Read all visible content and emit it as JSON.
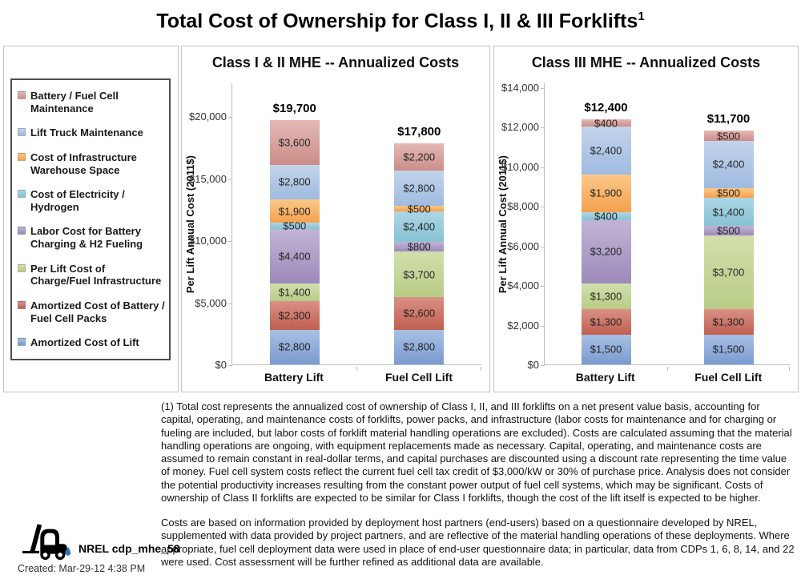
{
  "page_title": "Total Cost of Ownership for Class I, II & III Forklifts",
  "title_superscript": "1",
  "colors": {
    "battery_fc_maintenance": [
      "#E4B9B5",
      "#CB8D89"
    ],
    "lift_truck_maintenance": [
      "#C3D4EC",
      "#9FBBDF"
    ],
    "infrastructure_warehouse": [
      "#FBC888",
      "#F4A14E"
    ],
    "electricity_hydrogen": [
      "#ACD6E4",
      "#88C2D5"
    ],
    "labor_charging": [
      "#C2B4D6",
      "#9C8ABB"
    ],
    "charge_fuel_infrastructure": [
      "#D2DFAC",
      "#B8CC86"
    ],
    "amortized_battery_fc": [
      "#DA9086",
      "#BF5F50"
    ],
    "amortized_lift": [
      "#A8C0E4",
      "#7A9BD0"
    ]
  },
  "legend": {
    "items": [
      {
        "label": "Battery / Fuel Cell Maintenance",
        "color": "battery_fc_maintenance"
      },
      {
        "label": "Lift Truck Maintenance",
        "color": "lift_truck_maintenance"
      },
      {
        "label": "Cost of Infrastructure Warehouse Space",
        "color": "infrastructure_warehouse"
      },
      {
        "label": "Cost of Electricity / Hydrogen",
        "color": "electricity_hydrogen"
      },
      {
        "label": "Labor Cost for Battery Charging & H2 Fueling",
        "color": "labor_charging"
      },
      {
        "label": "Per Lift Cost of Charge/Fuel Infrastructure",
        "color": "charge_fuel_infrastructure"
      },
      {
        "label": "Amortized Cost of Battery / Fuel Cell Packs",
        "color": "amortized_battery_fc"
      },
      {
        "label": "Amortized Cost of Lift",
        "color": "amortized_lift"
      }
    ]
  },
  "chart_data": [
    {
      "type": "bar",
      "stacked": true,
      "title": "Class I & II MHE -- Annualized Costs",
      "ylabel": "Per Lift Annual Cost (2011$)",
      "ylim": [
        0,
        20000
      ],
      "yticks": [
        "$0",
        "$5,000",
        "$10,000",
        "$15,000",
        "$20,000"
      ],
      "categories": [
        "Battery Lift",
        "Fuel Cell Lift"
      ],
      "totals": [
        19700,
        17800
      ],
      "series": [
        {
          "name": "Amortized Cost of Lift",
          "color": "amortized_lift",
          "values": [
            2800,
            2800
          ]
        },
        {
          "name": "Amortized Cost of Battery / Fuel Cell Packs",
          "color": "amortized_battery_fc",
          "values": [
            2300,
            2600
          ]
        },
        {
          "name": "Per Lift Cost of Charge/Fuel Infrastructure",
          "color": "charge_fuel_infrastructure",
          "values": [
            1400,
            3700
          ]
        },
        {
          "name": "Labor Cost for Battery Charging & H2 Fueling",
          "color": "labor_charging",
          "values": [
            4400,
            800
          ]
        },
        {
          "name": "Cost of Electricity / Hydrogen",
          "color": "electricity_hydrogen",
          "values": [
            500,
            2400
          ]
        },
        {
          "name": "Cost of Infrastructure Warehouse Space",
          "color": "infrastructure_warehouse",
          "values": [
            1900,
            500
          ]
        },
        {
          "name": "Lift Truck Maintenance",
          "color": "lift_truck_maintenance",
          "values": [
            2800,
            2800
          ]
        },
        {
          "name": "Battery / Fuel Cell Maintenance",
          "color": "battery_fc_maintenance",
          "values": [
            3600,
            2200
          ]
        }
      ]
    },
    {
      "type": "bar",
      "stacked": true,
      "title": "Class III MHE -- Annualized Costs",
      "ylabel": "Per Lift Annual Cost (2011$)",
      "ylim": [
        0,
        14000
      ],
      "yticks": [
        "$0",
        "$2,000",
        "$4,000",
        "$6,000",
        "$8,000",
        "$10,000",
        "$12,000",
        "$14,000"
      ],
      "categories": [
        "Battery Lift",
        "Fuel Cell Lift"
      ],
      "totals": [
        12400,
        11700
      ],
      "series": [
        {
          "name": "Amortized Cost of Lift",
          "color": "amortized_lift",
          "values": [
            1500,
            1500
          ]
        },
        {
          "name": "Amortized Cost of Battery / Fuel Cell Packs",
          "color": "amortized_battery_fc",
          "values": [
            1300,
            1300
          ]
        },
        {
          "name": "Per Lift Cost of Charge/Fuel Infrastructure",
          "color": "charge_fuel_infrastructure",
          "values": [
            1300,
            3700
          ]
        },
        {
          "name": "Labor Cost for Battery Charging & H2 Fueling",
          "color": "labor_charging",
          "values": [
            3200,
            500
          ]
        },
        {
          "name": "Cost of Electricity / Hydrogen",
          "color": "electricity_hydrogen",
          "values": [
            400,
            1400
          ]
        },
        {
          "name": "Cost of Infrastructure Warehouse Space",
          "color": "infrastructure_warehouse",
          "values": [
            1900,
            500
          ]
        },
        {
          "name": "Lift Truck Maintenance",
          "color": "lift_truck_maintenance",
          "values": [
            2400,
            2400
          ]
        },
        {
          "name": "Battery / Fuel Cell Maintenance",
          "color": "battery_fc_maintenance",
          "values": [
            400,
            500
          ]
        }
      ]
    }
  ],
  "footnotes": {
    "p1": "(1) Total cost represents the annualized cost of ownership of Class I, II, and III forklifts on a net present value basis, accounting for capital, operating, and maintenance costs of forklifts, power packs, and infrastructure (labor costs for maintenance and for charging or fueling are included, but labor costs of forklift material handling operations are excluded).  Costs are calculated assuming that the material handling operations are ongoing, with equipment replacements made as necessary.  Capital, operating, and maintenance costs are assumed to remain constant in real-dollar terms, and capital purchases are discounted using a discount rate representing the time value of money.  Fuel cell system costs reflect the current fuel cell tax credit of $3,000/kW or 30% of purchase price.  Analysis does not consider the potential productivity increases resulting from the constant power output of fuel cell systems, which may be significant.  Costs of ownership of Class II forklifts are expected to be similar for Class I forklifts, though the cost of the lift itself is expected to be higher.",
    "p2": "Costs are based on information provided by deployment host partners (end-users) based on a questionnaire developed by NREL, supplemented with data provided by project partners, and are reflective of the material handling operations of these deployments. Where appropriate, fuel cell deployment data were used in place of end-user questionnaire data; in particular, data from CDPs 1, 6, 8, 14, and 22 were used. Cost assessment will be further refined as additional data are available."
  },
  "stamp": {
    "label": "NREL cdp_mhe_58",
    "created": "Created: Mar-29-12 4:38 PM",
    "droplet_color": "#2E75B6"
  }
}
